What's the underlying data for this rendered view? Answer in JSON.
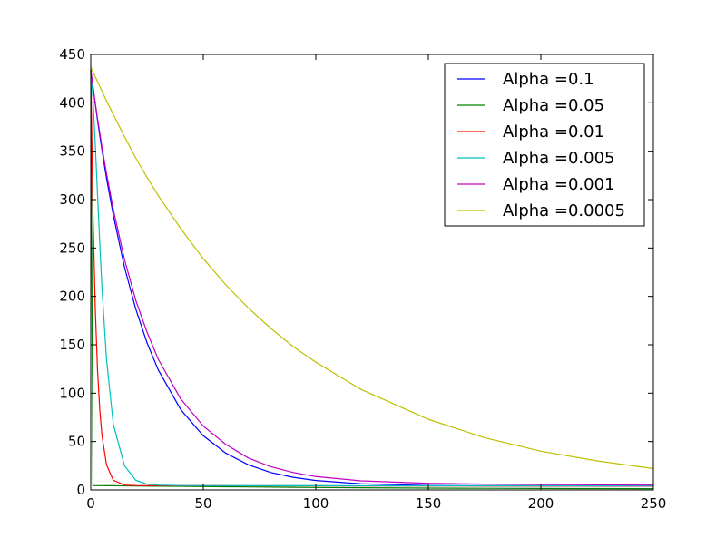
{
  "chart_data": {
    "type": "line",
    "title": "",
    "xlabel": "",
    "ylabel": "",
    "xlim": [
      0,
      250
    ],
    "ylim": [
      0,
      450
    ],
    "x_ticks": [
      0,
      50,
      100,
      150,
      200,
      250
    ],
    "y_ticks": [
      0,
      50,
      100,
      150,
      200,
      250,
      300,
      350,
      400,
      450
    ],
    "x_tick_labels": [
      "0",
      "50",
      "100",
      "150",
      "200",
      "250"
    ],
    "y_tick_labels": [
      "0",
      "50",
      "100",
      "150",
      "200",
      "250",
      "300",
      "350",
      "400",
      "450"
    ],
    "grid": false,
    "legend_position": "top-right",
    "x": [
      0,
      1,
      2,
      3,
      4,
      5,
      7,
      10,
      15,
      20,
      25,
      30,
      40,
      50,
      60,
      70,
      80,
      90,
      100,
      120,
      150,
      175,
      200,
      225,
      250
    ],
    "series": [
      {
        "name": "Alpha =0.1",
        "color": "#0000ff",
        "values": [
          434,
          416,
          399,
          382,
          366,
          351,
          322,
          284,
          230,
          187,
          152,
          124,
          83,
          56,
          38,
          26,
          18,
          13,
          9.7,
          6.3,
          4.5,
          4.2,
          4.1,
          4.0,
          4.0
        ]
      },
      {
        "name": "Alpha =0.05",
        "color": "#008000",
        "values": [
          434,
          4.5,
          4.4,
          4.4,
          4.4,
          4.4,
          4.3,
          4.3,
          4.2,
          4.1,
          4.0,
          3.9,
          3.7,
          3.5,
          3.3,
          3.1,
          2.9,
          2.7,
          2.5,
          2.2,
          1.9,
          1.7,
          1.5,
          1.4,
          1.3
        ]
      },
      {
        "name": "Alpha =0.01",
        "color": "#ff0000",
        "values": [
          434,
          285,
          188,
          124,
          83,
          56,
          26,
          10,
          5.0,
          4.5,
          4.4,
          4.4,
          4.3,
          4.3,
          4.3,
          4.2,
          4.2,
          4.2,
          4.2,
          4.1,
          4.1,
          4.0,
          4.0,
          4.0,
          4.0
        ]
      },
      {
        "name": "Alpha =0.005",
        "color": "#00bfbf",
        "values": [
          434,
          405,
          357,
          306,
          255,
          208,
          135,
          68,
          25,
          10,
          6,
          5,
          4.5,
          4.4,
          4.4,
          4.3,
          4.3,
          4.3,
          4.3,
          4.2,
          4.2,
          4.2,
          4.2,
          4.2,
          4.2
        ]
      },
      {
        "name": "Alpha =0.001",
        "color": "#bf00bf",
        "values": [
          434,
          417,
          400,
          384,
          369,
          354,
          327,
          290,
          238,
          196,
          163,
          135,
          94,
          66,
          47,
          33,
          24,
          18,
          13.8,
          9.4,
          6.8,
          6.0,
          5.5,
          5.2,
          5.0
        ]
      },
      {
        "name": "Alpha =0.0005",
        "color": "#bfbf00",
        "values": [
          437,
          432,
          427,
          422,
          417,
          412,
          402,
          388,
          365,
          343,
          323,
          304,
          270,
          239,
          212,
          188,
          167,
          148,
          132,
          104,
          73,
          54,
          40,
          30,
          22
        ]
      }
    ]
  }
}
